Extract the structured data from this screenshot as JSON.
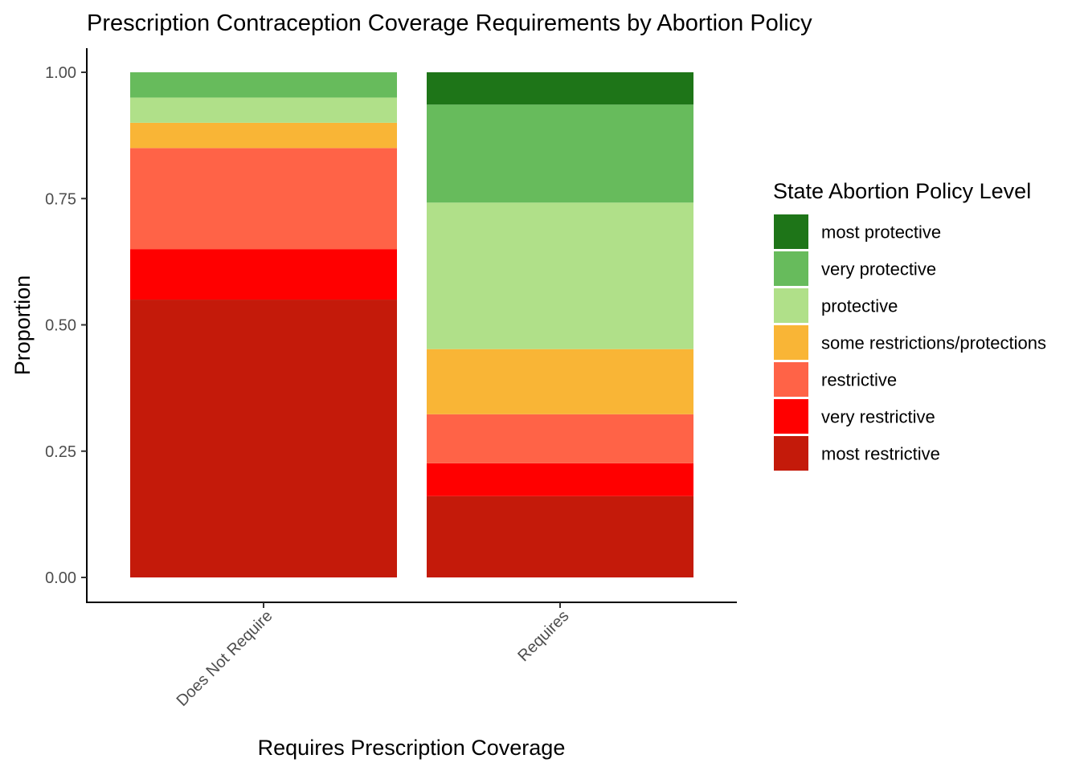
{
  "chart_data": {
    "type": "bar",
    "stacked": true,
    "title": "Prescription Contraception Coverage Requirements by Abortion Policy",
    "xlabel": "Requires Prescription Coverage",
    "ylabel": "Proportion",
    "ylim": [
      0,
      1
    ],
    "yticks": [
      "0.00",
      "0.25",
      "0.50",
      "0.75",
      "1.00"
    ],
    "y_tick_values": [
      0,
      0.25,
      0.5,
      0.75,
      1.0
    ],
    "grid": false,
    "legend_title": "State Abortion Policy Level",
    "legend_position": "right",
    "categories": [
      "Does Not Require",
      "Requires"
    ],
    "series": [
      {
        "name": "most restrictive",
        "color": "#C41A0A",
        "values": [
          0.55,
          0.161
        ]
      },
      {
        "name": "very restrictive",
        "color": "#FF0000",
        "values": [
          0.1,
          0.065
        ]
      },
      {
        "name": "restrictive",
        "color": "#FF6347",
        "values": [
          0.2,
          0.097
        ]
      },
      {
        "name": "some restrictions/protections",
        "color": "#F9B536",
        "values": [
          0.05,
          0.129
        ]
      },
      {
        "name": "protective",
        "color": "#B0E089",
        "values": [
          0.05,
          0.29
        ]
      },
      {
        "name": "very protective",
        "color": "#67BB5C",
        "values": [
          0.05,
          0.194
        ]
      },
      {
        "name": "most protective",
        "color": "#1E7518",
        "values": [
          0.0,
          0.064
        ]
      }
    ]
  }
}
